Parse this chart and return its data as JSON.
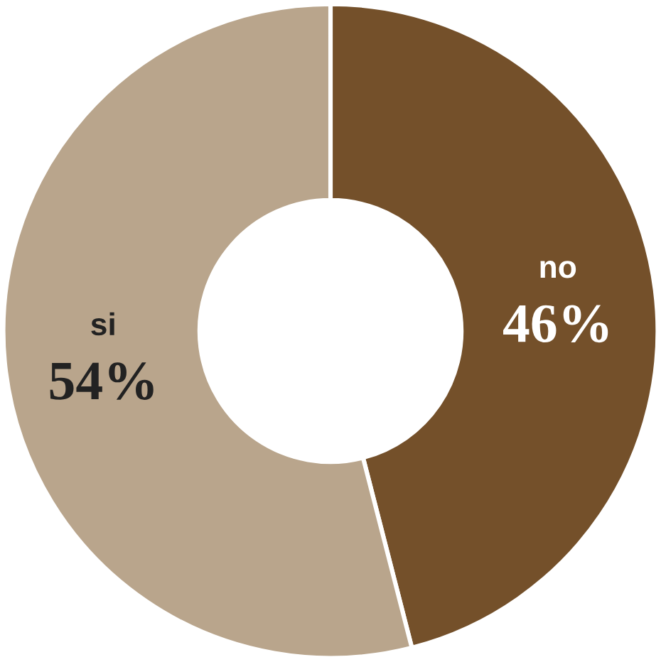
{
  "chart_data": {
    "type": "donut",
    "categories": [
      "no",
      "si"
    ],
    "values": [
      46,
      54
    ],
    "colors": [
      "#74502a",
      "#b9a58c"
    ],
    "value_labels": [
      "46%",
      "54%"
    ]
  }
}
